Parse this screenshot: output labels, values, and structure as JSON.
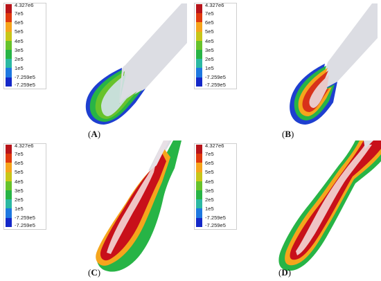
{
  "legend": {
    "ticks": [
      "4.327e6",
      "7e5",
      "6e5",
      "5e5",
      "4e5",
      "3e5",
      "2e5",
      "1e5",
      "-7.259e5"
    ],
    "colors": [
      "#b8141a",
      "#e03a0e",
      "#f5a51c",
      "#c7c619",
      "#67c32b",
      "#27b446",
      "#2bb9a2",
      "#1e78e0",
      "#1428c8"
    ]
  },
  "panels": [
    {
      "label": "A",
      "caption_open": "(",
      "caption_close": ")"
    },
    {
      "label": "B",
      "caption_open": "(",
      "caption_close": ")"
    },
    {
      "label": "C",
      "caption_open": "(",
      "caption_close": ")"
    },
    {
      "label": "D",
      "caption_open": "(",
      "caption_close": ")"
    }
  ]
}
